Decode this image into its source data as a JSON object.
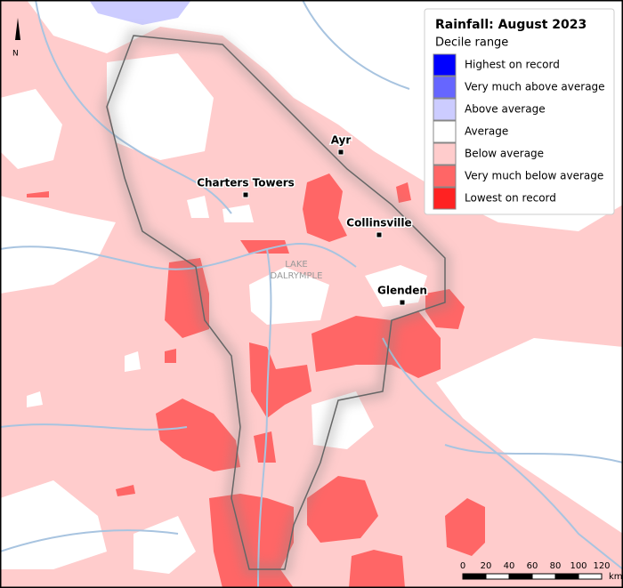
{
  "north": "N",
  "lake_label": [
    "LAKE",
    "DALRYMPLE"
  ],
  "legend": {
    "title": "Rainfall: August 2023",
    "subtitle": "Decile range",
    "items": [
      {
        "label": "Highest on record",
        "color": "#0000ff"
      },
      {
        "label": "Very much above average",
        "color": "#6666ff"
      },
      {
        "label": "Above average",
        "color": "#ccccff"
      },
      {
        "label": "Average",
        "color": "#ffffff"
      },
      {
        "label": "Below average",
        "color": "#ffcccc"
      },
      {
        "label": "Very much below average",
        "color": "#ff6666"
      },
      {
        "label": "Lowest on record",
        "color": "#ff2222"
      }
    ]
  },
  "towns": [
    "Ayr",
    "Charters Towers",
    "Collinsville",
    "Glenden"
  ],
  "scale_bar": {
    "labels": [
      "0",
      "20",
      "40",
      "60",
      "80",
      "100",
      "120"
    ],
    "unit": "km"
  }
}
